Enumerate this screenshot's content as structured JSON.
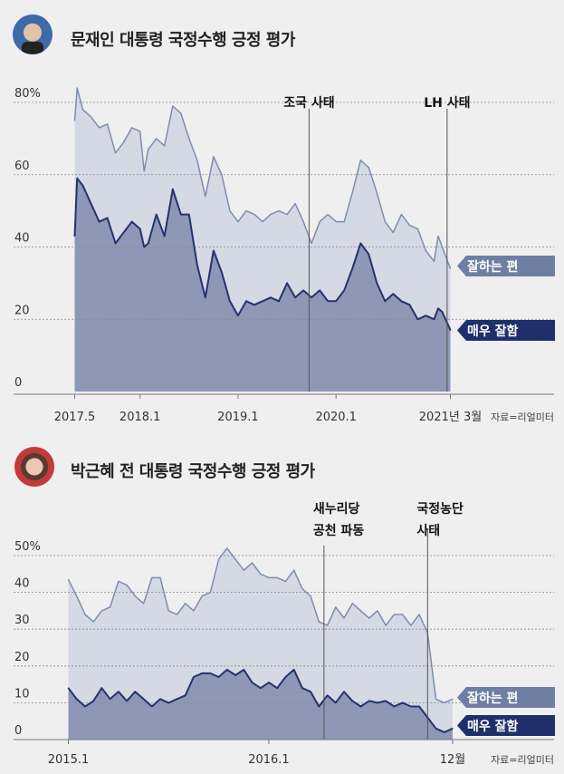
{
  "colors": {
    "background": "#efefef",
    "good_fill": "#d5d9e3",
    "good_line": "#7d8db0",
    "very_fill": "#8e98b6",
    "very_line": "#23336e",
    "good_tag": "#6f7fa3",
    "very_tag": "#1f2f6b"
  },
  "chart_data": [
    {
      "type": "area",
      "title": "문재인 대통령 국정수행 긍정 평가",
      "avatar": "portrait-photo",
      "ylim": [
        0,
        80
      ],
      "yticks": [
        "80%",
        "60",
        "40",
        "20",
        "0"
      ],
      "ytick_values": [
        80,
        60,
        40,
        20,
        0
      ],
      "xlim": [
        "2017-05",
        "2021-03"
      ],
      "xticks": [
        {
          "label": "2017.5",
          "date": "2017-05"
        },
        {
          "label": "2018.1",
          "date": "2018-01"
        },
        {
          "label": "2019.1",
          "date": "2019-01"
        },
        {
          "label": "2020.1",
          "date": "2020-01"
        },
        {
          "label": "2021년 3월",
          "date": "2021-03"
        }
      ],
      "grid": true,
      "annotations": [
        {
          "label": [
            "조국 사태"
          ],
          "date": "2019-09.7"
        },
        {
          "label": [
            "LH 사태"
          ],
          "date": "2021-02.6"
        }
      ],
      "source": "자료=리얼미터",
      "series": [
        {
          "name": "잘하는 편",
          "x": [
            "2017-05",
            "2017-05.3",
            "2017-06",
            "2017-07",
            "2017-08",
            "2017-09",
            "2017-10",
            "2017-11",
            "2017-12",
            "2018-01",
            "2018-01.5",
            "2018-02",
            "2018-03",
            "2018-04",
            "2018-05",
            "2018-06",
            "2018-07",
            "2018-08",
            "2018-09",
            "2018-10",
            "2018-11",
            "2018-12",
            "2019-01",
            "2019-02",
            "2019-03",
            "2019-04",
            "2019-05",
            "2019-06",
            "2019-07",
            "2019-08",
            "2019-09",
            "2019-10",
            "2019-11",
            "2019-12",
            "2020-01",
            "2020-02",
            "2020-03",
            "2020-04",
            "2020-05",
            "2020-06",
            "2020-07",
            "2020-08",
            "2020-09",
            "2020-10",
            "2020-11",
            "2020-12",
            "2021-01",
            "2021-01.5",
            "2021-02",
            "2021-03"
          ],
          "values": [
            75,
            84,
            78,
            76,
            73,
            74,
            66,
            69,
            73,
            72,
            61,
            67,
            70,
            68,
            79,
            77,
            70,
            64,
            54,
            65,
            60,
            50,
            47,
            50,
            49,
            47,
            49,
            50,
            49,
            52,
            47,
            41,
            47,
            49,
            47,
            47,
            55,
            64,
            62,
            55,
            47,
            44,
            49,
            46,
            45,
            39,
            36,
            43,
            40,
            34
          ]
        },
        {
          "name": "매우 잘함",
          "x": [
            "2017-05",
            "2017-05.3",
            "2017-06",
            "2017-07",
            "2017-08",
            "2017-09",
            "2017-10",
            "2017-11",
            "2017-12",
            "2018-01",
            "2018-01.5",
            "2018-02",
            "2018-03",
            "2018-04",
            "2018-05",
            "2018-06",
            "2018-07",
            "2018-08",
            "2018-09",
            "2018-10",
            "2018-11",
            "2018-12",
            "2019-01",
            "2019-02",
            "2019-03",
            "2019-04",
            "2019-05",
            "2019-06",
            "2019-07",
            "2019-08",
            "2019-09",
            "2019-10",
            "2019-11",
            "2019-12",
            "2020-01",
            "2020-02",
            "2020-03",
            "2020-04",
            "2020-05",
            "2020-06",
            "2020-07",
            "2020-08",
            "2020-09",
            "2020-10",
            "2020-11",
            "2020-12",
            "2021-01",
            "2021-01.5",
            "2021-02",
            "2021-03"
          ],
          "values": [
            43,
            59,
            57,
            52,
            47,
            48,
            41,
            44,
            47,
            45,
            40,
            41,
            49,
            43,
            56,
            49,
            49,
            35,
            26,
            39,
            33,
            25,
            21,
            25,
            24,
            25,
            26,
            25,
            30,
            26,
            28,
            26,
            28,
            25,
            25,
            28,
            34,
            41,
            38,
            30,
            25,
            27,
            25,
            24,
            20,
            21,
            20,
            23,
            22,
            17
          ]
        }
      ]
    },
    {
      "type": "area",
      "title": "박근혜 전 대통령 국정수행 긍정 평가",
      "avatar": "portrait-photo",
      "ylim": [
        0,
        50
      ],
      "yticks": [
        "50%",
        "40",
        "30",
        "20",
        "10",
        "0"
      ],
      "ytick_values": [
        50,
        40,
        30,
        20,
        10,
        0
      ],
      "xlim": [
        "2015-01",
        "2016-12"
      ],
      "xticks": [
        {
          "label": "2015.1",
          "date": "2015-01"
        },
        {
          "label": "2016.1",
          "date": "2016-01"
        },
        {
          "label": "12월",
          "date": "2016-12"
        }
      ],
      "grid": true,
      "annotations": [
        {
          "label": [
            "새누리당",
            "공천 파동"
          ],
          "date": "2016-04.3"
        },
        {
          "label": [
            "국정농단",
            "사태"
          ],
          "date": "2016-10.5"
        }
      ],
      "source": "자료=리얼미터",
      "series": [
        {
          "name": "잘하는 편",
          "x": [
            "2015-01",
            "2015-01.5",
            "2015-02",
            "2015-02.5",
            "2015-03",
            "2015-03.5",
            "2015-04",
            "2015-04.5",
            "2015-05",
            "2015-05.5",
            "2015-06",
            "2015-06.5",
            "2015-07",
            "2015-07.5",
            "2015-08",
            "2015-08.5",
            "2015-09",
            "2015-09.5",
            "2015-10",
            "2015-10.5",
            "2015-11",
            "2015-11.5",
            "2015-12",
            "2015-12.5",
            "2016-01",
            "2016-01.5",
            "2016-02",
            "2016-02.5",
            "2016-03",
            "2016-03.5",
            "2016-04",
            "2016-04.5",
            "2016-05",
            "2016-05.5",
            "2016-06",
            "2016-06.5",
            "2016-07",
            "2016-07.5",
            "2016-08",
            "2016-08.5",
            "2016-09",
            "2016-09.5",
            "2016-10",
            "2016-10.5",
            "2016-11",
            "2016-11.5",
            "2016-12"
          ],
          "values": [
            43.5,
            39,
            34,
            32,
            35,
            36,
            43,
            42,
            39,
            37,
            44,
            44,
            35,
            34,
            37,
            35,
            39,
            40,
            49,
            52,
            49,
            46,
            48,
            45,
            44,
            44,
            43,
            46,
            41,
            39,
            32,
            31,
            36,
            33,
            37,
            35,
            33,
            35,
            31,
            34,
            34,
            31,
            34,
            29,
            11,
            10,
            11
          ]
        },
        {
          "name": "매우 잘함",
          "x": [
            "2015-01",
            "2015-01.5",
            "2015-02",
            "2015-02.5",
            "2015-03",
            "2015-03.5",
            "2015-04",
            "2015-04.5",
            "2015-05",
            "2015-05.5",
            "2015-06",
            "2015-06.5",
            "2015-07",
            "2015-07.5",
            "2015-08",
            "2015-08.5",
            "2015-09",
            "2015-09.5",
            "2015-10",
            "2015-10.5",
            "2015-11",
            "2015-11.5",
            "2015-12",
            "2015-12.5",
            "2016-01",
            "2016-01.5",
            "2016-02",
            "2016-02.5",
            "2016-03",
            "2016-03.5",
            "2016-04",
            "2016-04.5",
            "2016-05",
            "2016-05.5",
            "2016-06",
            "2016-06.5",
            "2016-07",
            "2016-07.5",
            "2016-08",
            "2016-08.5",
            "2016-09",
            "2016-09.5",
            "2016-10",
            "2016-10.5",
            "2016-11",
            "2016-11.5",
            "2016-12"
          ],
          "values": [
            14,
            11,
            9,
            10.5,
            14,
            11,
            13,
            10.5,
            13,
            11,
            9,
            11,
            10,
            11,
            12,
            17,
            18,
            18,
            17,
            19,
            17.5,
            19,
            15.5,
            14,
            15.5,
            14,
            17,
            19,
            14,
            13,
            9,
            12,
            10,
            13,
            10.5,
            9,
            10.5,
            10,
            10.5,
            9,
            10,
            9,
            9,
            6,
            3,
            2,
            3
          ]
        }
      ]
    }
  ]
}
